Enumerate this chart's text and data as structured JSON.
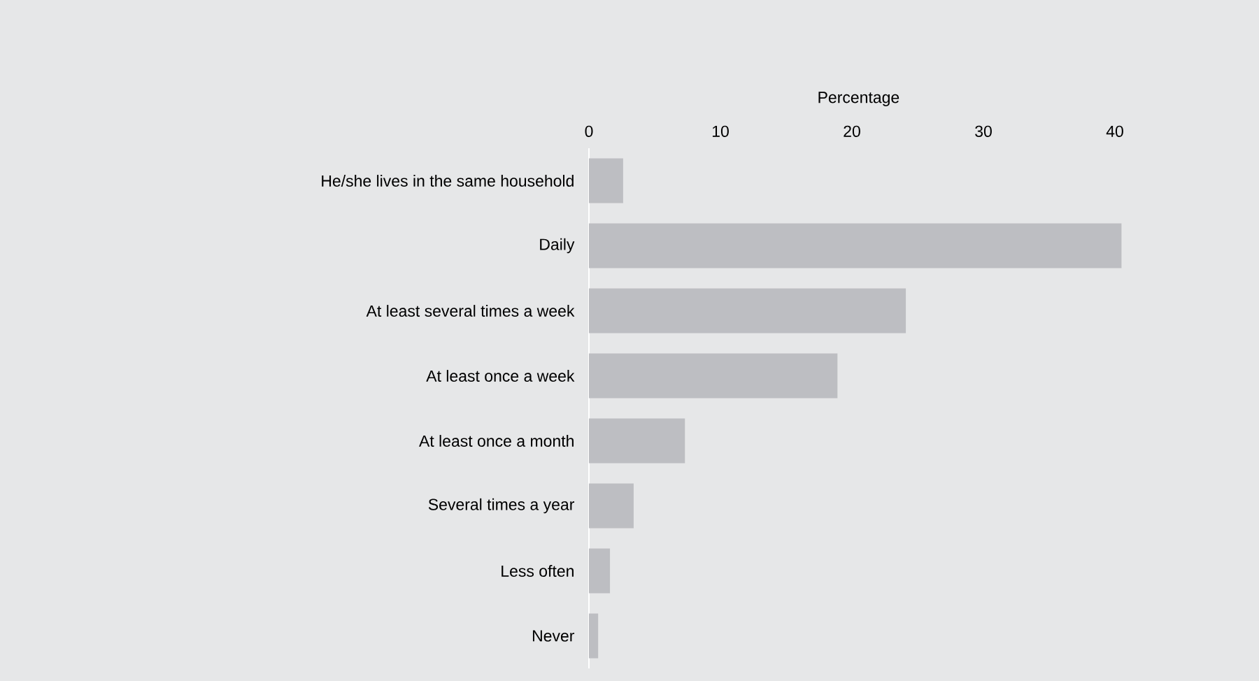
{
  "chart_data": {
    "type": "bar",
    "orientation": "horizontal",
    "xlabel": "Percentage",
    "categories": [
      "He/she lives in the same household",
      "Daily",
      "At least several times a week",
      "At least once a week",
      "At least once a month",
      "Several times a year",
      "Less often",
      "Never"
    ],
    "values": [
      2.6,
      40.5,
      24.1,
      18.9,
      7.3,
      3.4,
      1.6,
      0.7
    ],
    "color": "#bdbec2",
    "xlim": [
      0,
      41
    ],
    "xticks": [
      0,
      10,
      20,
      30,
      40
    ],
    "grid": false
  }
}
